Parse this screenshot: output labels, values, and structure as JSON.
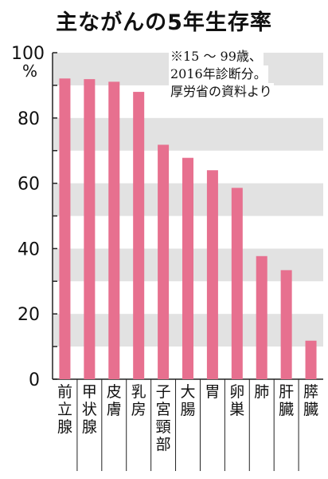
{
  "title": "主ながんの5年生存率",
  "note_lines": [
    "※15 〜 99歳、",
    "2016年診断分。",
    "厚労省の資料より"
  ],
  "chart_data": {
    "type": "bar",
    "title": "主ながんの5年生存率",
    "y_unit": "%",
    "ylim": [
      0,
      100
    ],
    "yticks": [
      0,
      20,
      40,
      60,
      80,
      100
    ],
    "grid": "alternating horizontal bands every 10",
    "categories": [
      "前立腺",
      "甲状腺",
      "皮膚",
      "乳房",
      "子宮頸部",
      "大腸",
      "胃",
      "卵巣",
      "肺",
      "肝臓",
      "膵臓"
    ],
    "values": [
      92.1,
      91.9,
      91.1,
      88.0,
      71.8,
      67.8,
      64.0,
      58.6,
      37.7,
      33.4,
      11.8
    ],
    "bar_color": "#E7708F",
    "band_color": "#E2E2E2"
  }
}
